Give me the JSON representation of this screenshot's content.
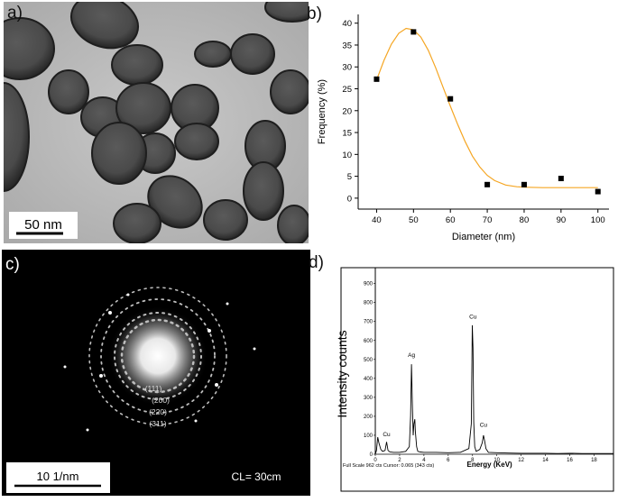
{
  "panels": {
    "a": {
      "label": "a)",
      "scale_bar": "50 nm"
    },
    "b": {
      "label": "b)"
    },
    "c": {
      "label": "c)",
      "scale_bar": "10 1/nm",
      "camera_length": "CL= 30cm",
      "rings": [
        "(111)",
        "(200)",
        "(220)",
        "(311)"
      ]
    },
    "d": {
      "label": "d)"
    }
  },
  "chart_data": [
    {
      "type": "scatter",
      "title": "",
      "xlabel": "Diameter (nm)",
      "ylabel": "Frequency (%)",
      "xlim": [
        35,
        103
      ],
      "ylim": [
        -2.5,
        42
      ],
      "xticks": [
        40,
        50,
        60,
        70,
        80,
        90,
        100
      ],
      "yticks": [
        0,
        5,
        10,
        15,
        20,
        25,
        30,
        35,
        40
      ],
      "grid": false,
      "point_color": "#000000",
      "fit_color": "#f5a623",
      "series": [
        {
          "x": [
            40,
            50,
            60,
            70,
            80,
            90,
            100
          ],
          "y": [
            27.2,
            38,
            22.7,
            3.1,
            3.1,
            4.5,
            1.5
          ]
        }
      ],
      "fit_curve": {
        "x": [
          40,
          42,
          44,
          46,
          48,
          50,
          52,
          54,
          56,
          58,
          60,
          62,
          64,
          66,
          68,
          70,
          72,
          75,
          78,
          80,
          85,
          90,
          95,
          100
        ],
        "y": [
          27,
          31.5,
          35.2,
          37.7,
          38.8,
          38.5,
          36.8,
          33.8,
          29.8,
          25.4,
          21,
          16.8,
          12.9,
          9.6,
          7.1,
          5.2,
          4,
          3,
          2.6,
          2.5,
          2.4,
          2.4,
          2.4,
          2.4
        ]
      }
    },
    {
      "type": "line",
      "title": "",
      "xlabel": "Energy (KeV)",
      "ylabel": "Intensity counts",
      "xlim": [
        0,
        19.6
      ],
      "ylim": [
        0,
        960
      ],
      "xticks": [
        0,
        2,
        4,
        6,
        8,
        10,
        12,
        14,
        16,
        18
      ],
      "yticks": [
        0,
        100,
        200,
        300,
        400,
        500,
        600,
        700,
        800,
        900
      ],
      "grid": false,
      "footer": "Full Scale 962 cts Cursor: 0.065  (343 cts)",
      "peak_labels": [
        {
          "text": "Cu",
          "x": 0.93,
          "y": 80
        },
        {
          "text": "Ag",
          "x": 2.98,
          "y": 500
        },
        {
          "text": "Cu",
          "x": 8.04,
          "y": 700
        },
        {
          "text": "Cu",
          "x": 8.9,
          "y": 130
        }
      ],
      "series": [
        {
          "x": [
            0,
            0.1,
            0.2,
            0.3,
            0.45,
            0.6,
            0.8,
            0.93,
            1.05,
            1.2,
            1.5,
            2.0,
            2.5,
            2.8,
            2.9,
            2.98,
            3.06,
            3.12,
            3.18,
            3.25,
            3.3,
            3.4,
            3.5,
            3.7,
            4.0,
            5.0,
            6.0,
            7.0,
            7.7,
            7.9,
            7.98,
            8.04,
            8.1,
            8.18,
            8.3,
            8.6,
            8.8,
            8.9,
            9.0,
            9.1,
            9.3,
            10,
            11,
            12,
            13,
            14,
            15,
            16,
            17,
            18,
            19,
            19.6
          ],
          "y": [
            0,
            20,
            90,
            60,
            25,
            15,
            20,
            65,
            20,
            12,
            10,
            10,
            15,
            40,
            200,
            475,
            240,
            100,
            160,
            185,
            120,
            40,
            15,
            12,
            10,
            10,
            8,
            10,
            30,
            160,
            680,
            560,
            170,
            40,
            15,
            25,
            60,
            100,
            70,
            30,
            10,
            8,
            6,
            5,
            5,
            5,
            4,
            5,
            4,
            4,
            4,
            4
          ]
        }
      ]
    }
  ]
}
